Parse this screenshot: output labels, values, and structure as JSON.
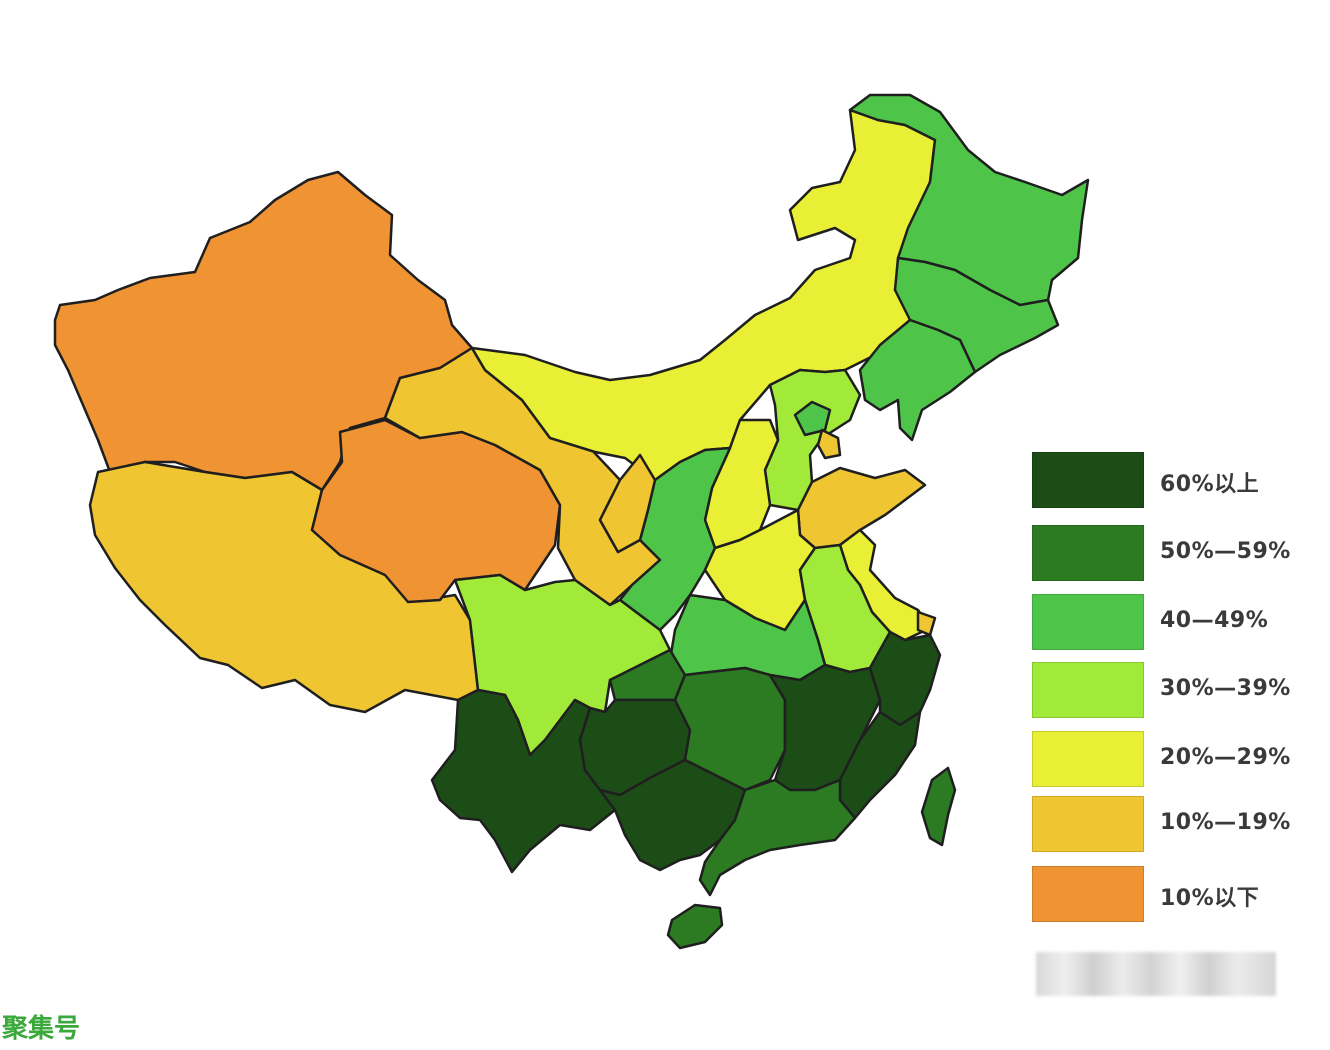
{
  "legend": {
    "items": [
      {
        "label": "60%以上",
        "color": "#1d4d17"
      },
      {
        "label": "50%—59%",
        "color": "#2c7b23"
      },
      {
        "label": "40—49%",
        "color": "#4ec549"
      },
      {
        "label": "30%—39%",
        "color": "#a2ea3a"
      },
      {
        "label": "20%—29%",
        "color": "#e8ef35"
      },
      {
        "label": "10%—19%",
        "color": "#f0c532"
      },
      {
        "label": "10%以下",
        "color": "#ef9333"
      }
    ]
  },
  "watermark": "聚集号"
}
